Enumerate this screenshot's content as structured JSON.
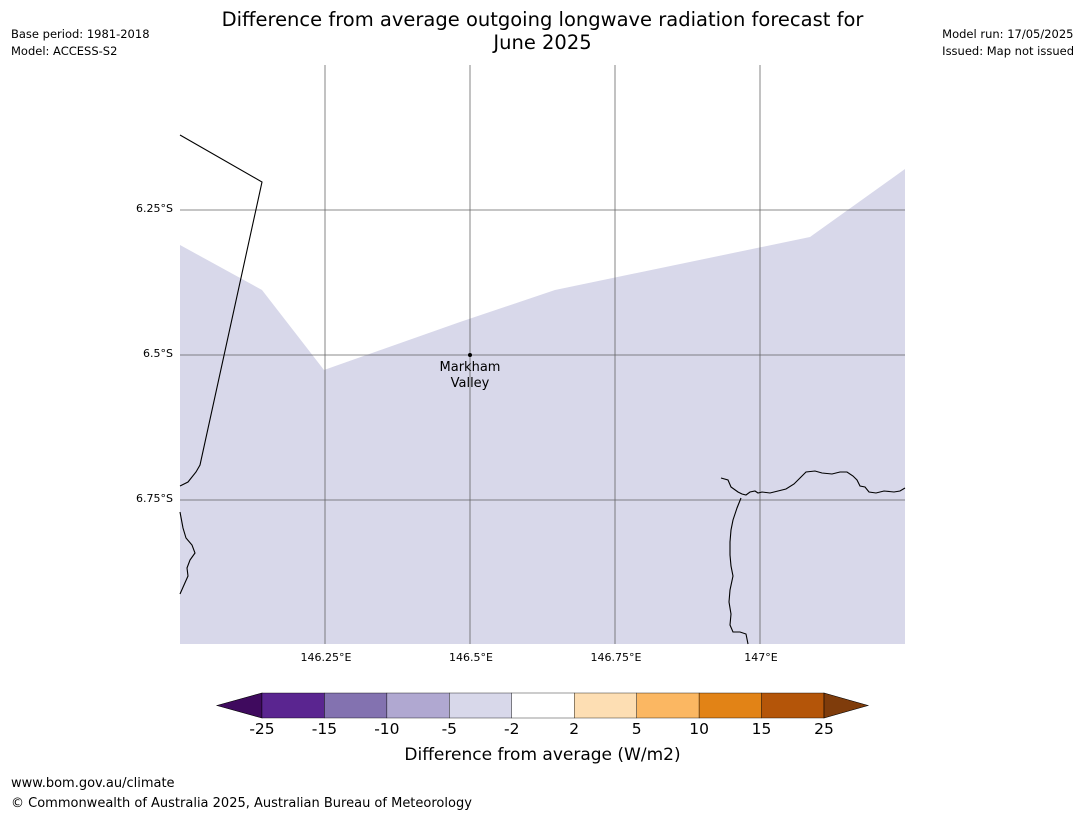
{
  "title_line1": "Difference from average outgoing longwave radiation forecast for",
  "title_line2": "June 2025",
  "meta_left": [
    "Base period: 1981-2018",
    "Model: ACCESS-S2"
  ],
  "meta_right": [
    "Model run: 17/05/2025",
    "Issued: Map not issued"
  ],
  "lat_labels": [
    "6.25°S",
    "6.5°S",
    "6.75°S"
  ],
  "lon_labels": [
    "146.25°E",
    "146.5°E",
    "146.75°E",
    "147°E"
  ],
  "place": {
    "name_line1": "Markham",
    "name_line2": "Valley"
  },
  "fill_color": "#d8d8ea",
  "colorbar": {
    "ticks": [
      "-25",
      "-15",
      "-10",
      "-5",
      "-2",
      "2",
      "5",
      "10",
      "15",
      "25"
    ],
    "colors": [
      "#3f0a5e",
      "#5a2590",
      "#8372b0",
      "#b0a8d1",
      "#d8d8ea",
      "#ffffff",
      "#fddeb3",
      "#fbb762",
      "#e28316",
      "#b45509",
      "#7f3c0b"
    ],
    "label": "Difference from average (W/m2)"
  },
  "footer": {
    "url": "www.bom.gov.au/climate",
    "copyright": "© Commonwealth of Australia 2025, Australian Bureau of Meteorology"
  }
}
